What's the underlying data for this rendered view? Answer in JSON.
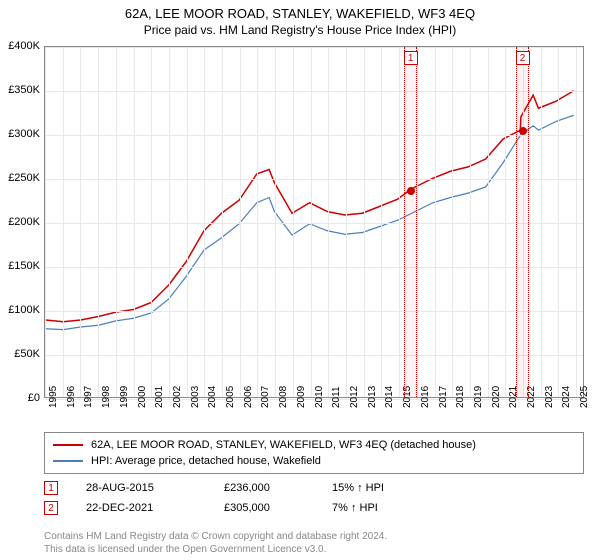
{
  "title": "62A, LEE MOOR ROAD, STANLEY, WAKEFIELD, WF3 4EQ",
  "subtitle": "Price paid vs. HM Land Registry's House Price Index (HPI)",
  "chart": {
    "type": "line",
    "background_color": "#ffffff",
    "grid_color": "#e8e8e8",
    "border_color": "#888888",
    "ylim": [
      0,
      400000
    ],
    "ytick_step": 50000,
    "yticks": [
      "£0",
      "£50K",
      "£100K",
      "£150K",
      "£200K",
      "£250K",
      "£300K",
      "£350K",
      "£400K"
    ],
    "xlim": [
      1995,
      2025.5
    ],
    "xticks": [
      1995,
      1996,
      1997,
      1998,
      1999,
      2000,
      2001,
      2002,
      2003,
      2004,
      2005,
      2006,
      2007,
      2008,
      2009,
      2010,
      2011,
      2012,
      2013,
      2014,
      2015,
      2016,
      2017,
      2018,
      2019,
      2020,
      2021,
      2022,
      2023,
      2024,
      2025
    ],
    "series": [
      {
        "name": "property",
        "label": "62A, LEE MOOR ROAD, STANLEY, WAKEFIELD, WF3 4EQ (detached house)",
        "color": "#cc0000",
        "line_width": 1.5,
        "data": [
          [
            1995,
            88000
          ],
          [
            1996,
            86000
          ],
          [
            1997,
            88000
          ],
          [
            1998,
            92000
          ],
          [
            1999,
            97000
          ],
          [
            2000,
            100000
          ],
          [
            2001,
            108000
          ],
          [
            2002,
            128000
          ],
          [
            2003,
            155000
          ],
          [
            2004,
            190000
          ],
          [
            2005,
            210000
          ],
          [
            2006,
            225000
          ],
          [
            2007,
            255000
          ],
          [
            2007.7,
            260000
          ],
          [
            2008,
            245000
          ],
          [
            2009,
            210000
          ],
          [
            2010,
            222000
          ],
          [
            2011,
            212000
          ],
          [
            2012,
            208000
          ],
          [
            2013,
            210000
          ],
          [
            2014,
            218000
          ],
          [
            2015,
            226000
          ],
          [
            2015.65,
            236000
          ],
          [
            2016,
            240000
          ],
          [
            2017,
            250000
          ],
          [
            2018,
            258000
          ],
          [
            2019,
            263000
          ],
          [
            2020,
            272000
          ],
          [
            2021,
            295000
          ],
          [
            2021.97,
            305000
          ],
          [
            2022,
            320000
          ],
          [
            2022.7,
            345000
          ],
          [
            2023,
            330000
          ],
          [
            2024,
            338000
          ],
          [
            2025,
            350000
          ]
        ]
      },
      {
        "name": "hpi",
        "label": "HPI: Average price, detached house, Wakefield",
        "color": "#4a7ebb",
        "line_width": 1.2,
        "data": [
          [
            1995,
            78000
          ],
          [
            1996,
            77000
          ],
          [
            1997,
            80000
          ],
          [
            1998,
            82000
          ],
          [
            1999,
            87000
          ],
          [
            2000,
            90000
          ],
          [
            2001,
            96000
          ],
          [
            2002,
            112000
          ],
          [
            2003,
            138000
          ],
          [
            2004,
            168000
          ],
          [
            2005,
            182000
          ],
          [
            2006,
            198000
          ],
          [
            2007,
            222000
          ],
          [
            2007.7,
            228000
          ],
          [
            2008,
            212000
          ],
          [
            2009,
            185000
          ],
          [
            2010,
            198000
          ],
          [
            2011,
            190000
          ],
          [
            2012,
            186000
          ],
          [
            2013,
            188000
          ],
          [
            2014,
            195000
          ],
          [
            2015,
            202000
          ],
          [
            2016,
            212000
          ],
          [
            2017,
            222000
          ],
          [
            2018,
            228000
          ],
          [
            2019,
            233000
          ],
          [
            2020,
            240000
          ],
          [
            2021,
            268000
          ],
          [
            2022,
            300000
          ],
          [
            2022.7,
            310000
          ],
          [
            2023,
            305000
          ],
          [
            2024,
            315000
          ],
          [
            2025,
            322000
          ]
        ]
      }
    ],
    "markers": [
      {
        "n": "1",
        "x": 2015.65,
        "y": 236000,
        "band_width_years": 0.35
      },
      {
        "n": "2",
        "x": 2021.97,
        "y": 305000,
        "band_width_years": 0.35
      }
    ]
  },
  "sales": [
    {
      "n": "1",
      "date": "28-AUG-2015",
      "price": "£236,000",
      "delta": "15% ↑ HPI"
    },
    {
      "n": "2",
      "date": "22-DEC-2021",
      "price": "£305,000",
      "delta": "7% ↑ HPI"
    }
  ],
  "footer": {
    "line1": "Contains HM Land Registry data © Crown copyright and database right 2024.",
    "line2": "This data is licensed under the Open Government Licence v3.0."
  }
}
